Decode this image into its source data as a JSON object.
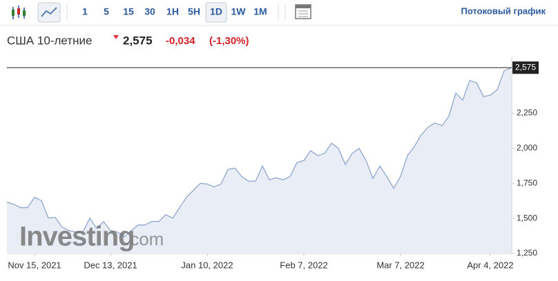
{
  "toolbar": {
    "intervals": [
      "1",
      "5",
      "15",
      "30",
      "1H",
      "5H",
      "1D",
      "1W",
      "1M"
    ],
    "active": "1D",
    "streaming": "Потоковый график"
  },
  "header": {
    "name": "США 10-летние",
    "price": "2,575",
    "change": "-0,034",
    "change_pct": "(-1,30%)"
  },
  "logo": {
    "brand": "Investing",
    "suffix": ".com"
  },
  "chart_data": {
    "type": "area",
    "categories": [
      null,
      null,
      null,
      null,
      "Nov 15, 2021",
      null,
      null,
      null,
      null,
      null,
      null,
      null,
      null,
      null,
      null,
      "Dec 13, 2021",
      null,
      null,
      null,
      null,
      null,
      null,
      null,
      null,
      null,
      null,
      null,
      null,
      null,
      "Jan 10, 2022",
      null,
      null,
      null,
      null,
      null,
      null,
      null,
      null,
      null,
      null,
      null,
      null,
      null,
      "Feb 7, 2022",
      null,
      null,
      null,
      null,
      null,
      null,
      null,
      null,
      null,
      null,
      null,
      null,
      null,
      "Mar 7, 2022",
      null,
      null,
      null,
      null,
      null,
      null,
      null,
      null,
      null,
      null,
      null,
      null,
      "Apr 4, 2022",
      null,
      null,
      null
    ],
    "values": [
      1616,
      1601,
      1577,
      1577,
      1651,
      1626,
      1502,
      1507,
      1438,
      1413,
      1403,
      1403,
      1502,
      1428,
      1478,
      1413,
      1403,
      1369,
      1413,
      1453,
      1453,
      1478,
      1478,
      1527,
      1502,
      1577,
      1651,
      1700,
      1750,
      1745,
      1725,
      1745,
      1849,
      1859,
      1799,
      1765,
      1765,
      1874,
      1775,
      1790,
      1775,
      1799,
      1898,
      1913,
      1983,
      1948,
      1963,
      2037,
      2000,
      1884,
      1963,
      2000,
      1913,
      1785,
      1874,
      1799,
      1715,
      1799,
      1948,
      2012,
      2096,
      2151,
      2181,
      2161,
      2230,
      2393,
      2344,
      2483,
      2468,
      2369,
      2379,
      2418,
      2552,
      2575
    ],
    "color": "#8ea7cf",
    "fill": "#e9eef6",
    "ylim": [
      1250,
      2650
    ],
    "yticks": [
      {
        "value": 1250,
        "label": "1,250"
      },
      {
        "value": 1500,
        "label": "1,500"
      },
      {
        "value": 1750,
        "label": "1,750"
      },
      {
        "value": 2000,
        "label": "2,000"
      },
      {
        "value": 2250,
        "label": "2,250"
      }
    ],
    "last_value": {
      "value": 2575,
      "label": "2,575"
    }
  }
}
